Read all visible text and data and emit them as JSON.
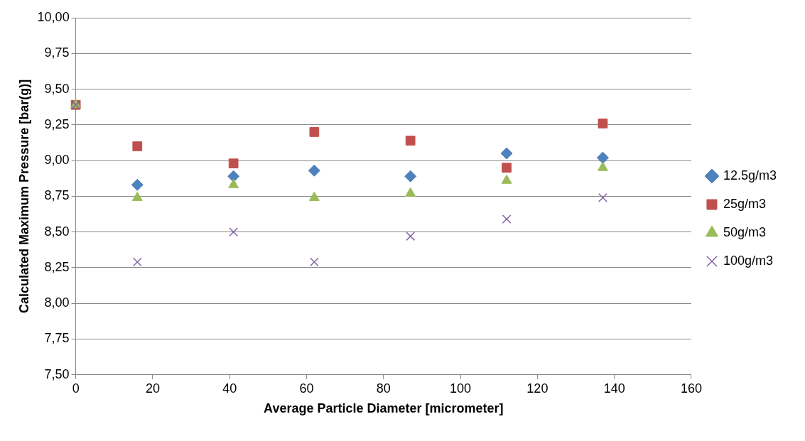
{
  "chart_data": {
    "type": "scatter",
    "xlabel": "Average Particle Diameter [micrometer]",
    "ylabel": "Calculated Maximum Pressure [bar(g)]",
    "x": [
      0,
      16,
      41,
      62,
      87,
      112,
      137
    ],
    "series": [
      {
        "name": "12.5g/m3",
        "color": "#4f81bd",
        "marker": "diamond",
        "values": [
          null,
          8.83,
          8.89,
          8.93,
          8.89,
          9.05,
          9.02
        ]
      },
      {
        "name": "25g/m3",
        "color": "#c0504d",
        "marker": "square",
        "values": [
          9.39,
          9.1,
          8.98,
          9.2,
          9.14,
          8.95,
          9.26
        ]
      },
      {
        "name": "50g/m3",
        "color": "#9bbb59",
        "marker": "triangle",
        "values": [
          9.39,
          8.74,
          8.83,
          8.74,
          8.77,
          8.86,
          8.95
        ]
      },
      {
        "name": "100g/m3",
        "color": "#8064a2",
        "marker": "cross",
        "values": [
          9.39,
          8.29,
          8.5,
          8.29,
          8.47,
          8.59,
          8.74
        ]
      }
    ],
    "xlim": [
      0,
      160
    ],
    "xticks": [
      0,
      20,
      40,
      60,
      80,
      100,
      120,
      140,
      160
    ],
    "ylim": [
      7.5,
      10
    ],
    "yticks": [
      {
        "value": 7.5,
        "label": "7,50"
      },
      {
        "value": 7.75,
        "label": "7,75"
      },
      {
        "value": 8,
        "label": "8,00"
      },
      {
        "value": 8.25,
        "label": "8,25"
      },
      {
        "value": 8.5,
        "label": "8,50"
      },
      {
        "value": 8.75,
        "label": "8,75"
      },
      {
        "value": 9,
        "label": "9,00"
      },
      {
        "value": 9.25,
        "label": "9,25"
      },
      {
        "value": 9.5,
        "label": "9,50"
      },
      {
        "value": 9.75,
        "label": "9,75"
      },
      {
        "value": 10,
        "label": "10,00"
      }
    ],
    "grid": "y",
    "legend": "right"
  }
}
